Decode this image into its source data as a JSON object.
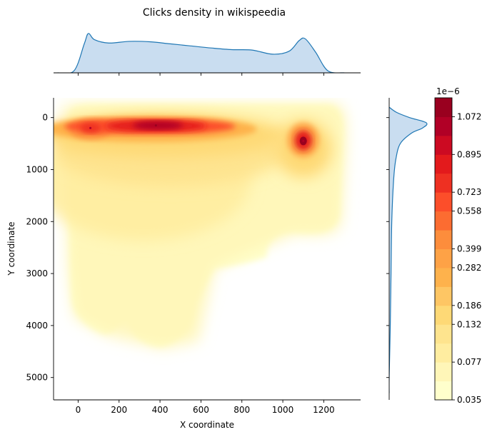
{
  "chart_data": {
    "type": "heatmap",
    "title": "Clicks density in wikispeedia",
    "xlabel": "X coordinate",
    "ylabel": "Y coordinate",
    "xlim": [
      -120,
      1380
    ],
    "ylim": [
      5430,
      -380
    ],
    "x_ticks": [
      0,
      200,
      400,
      600,
      800,
      1000,
      1200
    ],
    "y_ticks": [
      0,
      1000,
      2000,
      3000,
      4000,
      5000
    ],
    "colorbar": {
      "multiplier": "1e−6",
      "tick_labels": [
        "0.035",
        "0.077",
        "0.132",
        "0.186",
        "0.282",
        "0.399",
        "0.558",
        "0.723",
        "0.895",
        "1.072"
      ],
      "colors": [
        "#ffffcc",
        "#fff6b8",
        "#ffeda0",
        "#fee48e",
        "#fed976",
        "#fec664",
        "#feb24c",
        "#fea246",
        "#fd8d3c",
        "#fc6c31",
        "#fc4e2a",
        "#ee3022",
        "#e31a1c",
        "#cc0a22",
        "#b10026",
        "#99001f"
      ]
    },
    "density_peaks": [
      {
        "x": 380,
        "y": 150,
        "level": "max"
      },
      {
        "x": 1100,
        "y": 450,
        "level": "high"
      },
      {
        "x": 60,
        "y": 200,
        "level": "high"
      }
    ],
    "marginal_x": {
      "x": [
        -100,
        -20,
        30,
        50,
        80,
        150,
        250,
        350,
        450,
        550,
        650,
        750,
        850,
        950,
        1030,
        1080,
        1110,
        1160,
        1220,
        1300
      ],
      "density": [
        0.0,
        0.05,
        0.7,
        0.95,
        0.8,
        0.72,
        0.76,
        0.75,
        0.7,
        0.65,
        0.6,
        0.56,
        0.55,
        0.45,
        0.52,
        0.78,
        0.82,
        0.5,
        0.05,
        0.0
      ]
    },
    "marginal_y": {
      "y": [
        -200,
        -100,
        0,
        100,
        200,
        300,
        500,
        800,
        1200,
        2000,
        3000,
        4000,
        5000,
        5300
      ],
      "density": [
        0.0,
        0.2,
        0.55,
        1.0,
        0.9,
        0.6,
        0.3,
        0.18,
        0.12,
        0.07,
        0.05,
        0.03,
        0.0,
        0.0
      ]
    }
  }
}
